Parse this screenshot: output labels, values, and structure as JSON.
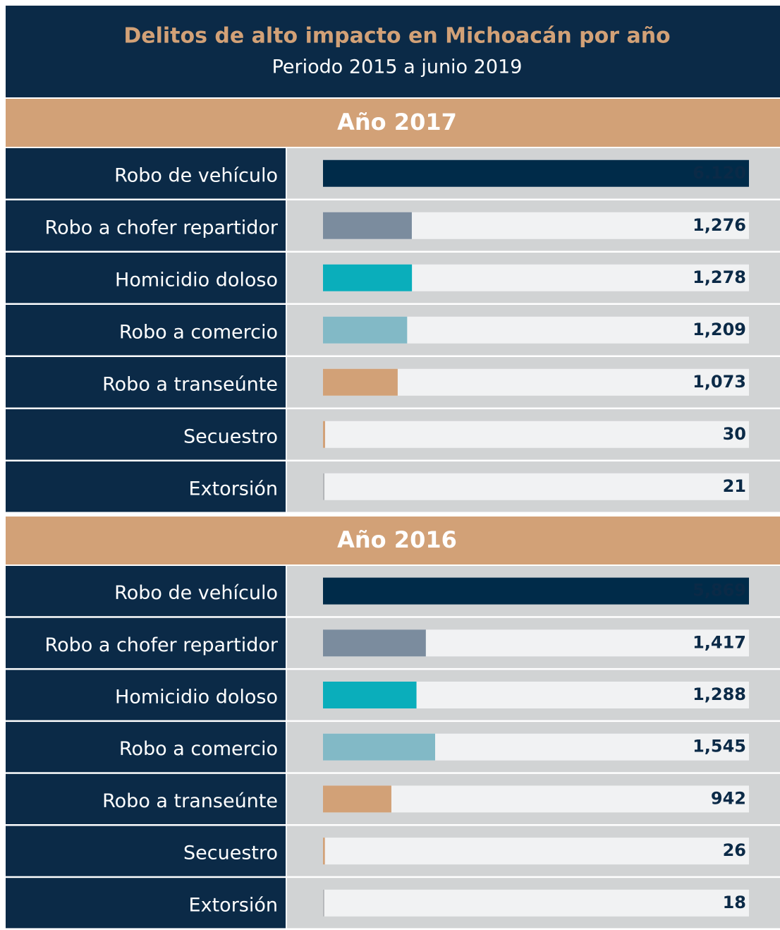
{
  "header": {
    "title": "Delitos de alto impacto en Michoacán por año",
    "subtitle": "Periodo  2015 a junio 2019"
  },
  "chart_data": [
    {
      "type": "bar",
      "title": "Año 2017",
      "categories": [
        "Robo de vehículo",
        "Robo a chofer repartidor",
        "Homicidio doloso",
        "Robo a comercio",
        "Robo a transeúnte",
        "Secuestro",
        "Extorsión"
      ],
      "values": [
        6120,
        1276,
        1278,
        1209,
        1073,
        30,
        21
      ],
      "value_labels": [
        "6.120",
        "1,276",
        "1,278",
        "1,209",
        "1,073",
        "30",
        "21"
      ],
      "colors": [
        "#002b49",
        "#7b8c9e",
        "#0aaebb",
        "#82b9c6",
        "#d2a177",
        "#d2a177",
        "#b4b6b9"
      ]
    },
    {
      "type": "bar",
      "title": "Año 2016",
      "categories": [
        "Robo de vehículo",
        "Robo a chofer repartidor",
        "Homicidio doloso",
        "Robo a comercio",
        "Robo a transeúnte",
        "Secuestro",
        "Extorsión"
      ],
      "values": [
        5869,
        1417,
        1288,
        1545,
        942,
        26,
        18
      ],
      "value_labels": [
        "5,869",
        "1,417",
        "1,288",
        "1,545",
        "942",
        "26",
        "18"
      ],
      "colors": [
        "#002b49",
        "#7b8c9e",
        "#0aaebb",
        "#82b9c6",
        "#d2a177",
        "#d2a177",
        "#b4b6b9"
      ]
    }
  ]
}
